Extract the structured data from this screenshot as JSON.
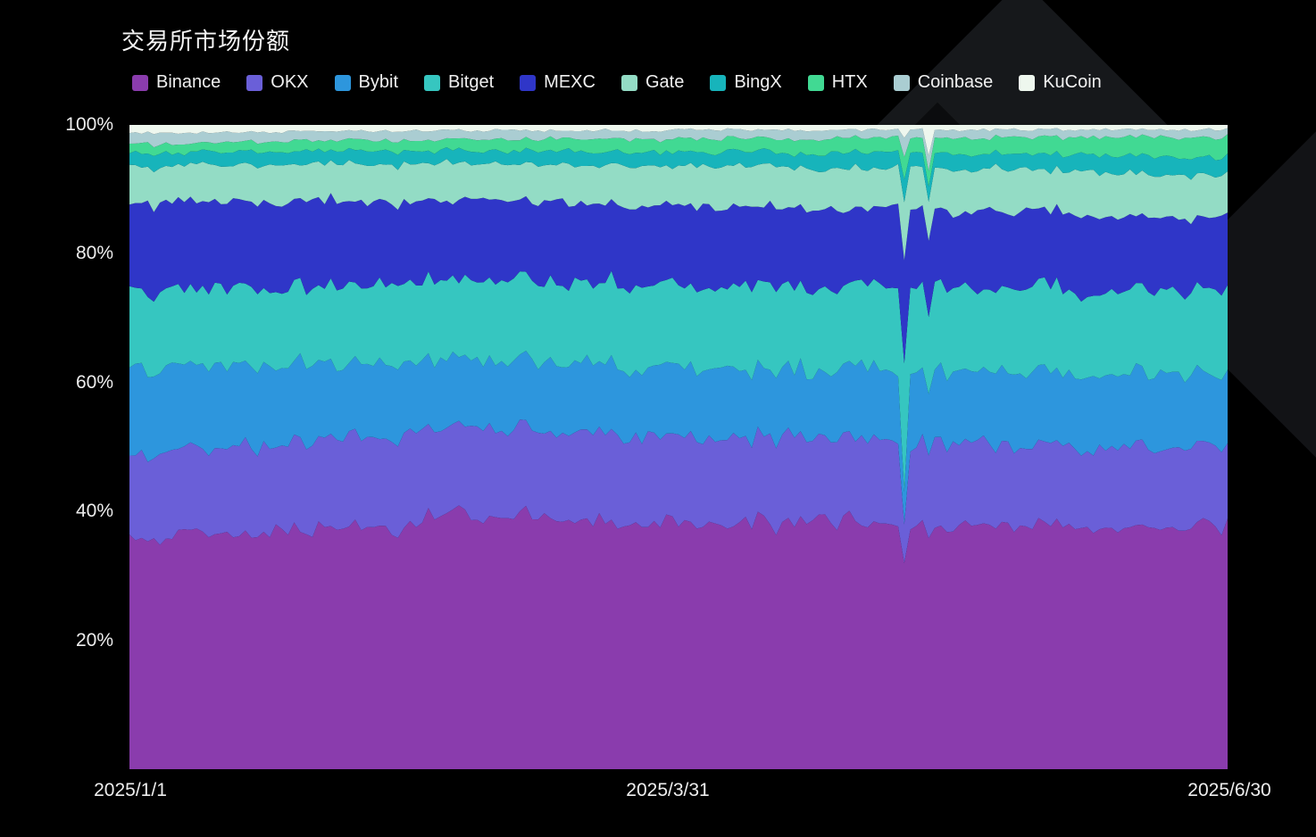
{
  "title": "交易所市场份额",
  "colors": {
    "background": "#000000",
    "text": "#ededed",
    "watermark": "#16181b"
  },
  "y_axis": {
    "labels": [
      "100%",
      "80%",
      "60%",
      "40%",
      "20%"
    ],
    "values": [
      100,
      80,
      60,
      40,
      20
    ]
  },
  "x_axis": {
    "labels": [
      "2025/1/1",
      "2025/3/31",
      "2025/6/30"
    ]
  },
  "chart_data": {
    "type": "area",
    "stacked": true,
    "normalized_percent": true,
    "title": "交易所市场份额",
    "xlabel": "",
    "ylabel": "",
    "ylim": [
      0,
      100
    ],
    "grid": false,
    "legend_position": "top",
    "x_range": [
      "2025/1/1",
      "2025/6/30"
    ],
    "x_tick_labels": [
      "2025/1/1",
      "2025/3/31",
      "2025/6/30"
    ],
    "y_tick_labels": [
      "20%",
      "40%",
      "60%",
      "80%",
      "100%"
    ],
    "sample_step_days": 6,
    "series_note": "approximate market-share percent, sampled every 6 days from 2025/1/1 to 2025/6/30, stacked bottom-to-top",
    "series": [
      {
        "name": "Binance",
        "color": "#8a3cad",
        "jitter": 1.4,
        "values": [
          36.2,
          35.5,
          37.0,
          36.0,
          37.5,
          36.5,
          38.0,
          37.2,
          38.5,
          40.5,
          38.8,
          39.2,
          37.6,
          38.2,
          37.0,
          38.0,
          37.6,
          36.8,
          38.2,
          37.2,
          38.5,
          37.0,
          36.2,
          37.6,
          36.6,
          37.4,
          36.2,
          37.0,
          36.6,
          37.4,
          37.2
        ]
      },
      {
        "name": "OKX",
        "color": "#6a5fd8",
        "jitter": 1.1,
        "values": [
          13.0,
          12.8,
          13.2,
          13.5,
          13.0,
          14.0,
          14.4,
          13.8,
          13.5,
          14.0,
          13.5,
          13.0,
          13.5,
          13.8,
          13.2,
          13.5,
          13.0,
          12.8,
          13.2,
          12.8,
          13.0,
          12.6,
          12.8,
          12.5,
          12.2,
          12.5,
          12.0,
          12.3,
          12.5,
          12.2,
          12.3
        ]
      },
      {
        "name": "Bybit",
        "color": "#2d96dd",
        "jitter": 1.0,
        "values": [
          13.5,
          13.0,
          12.6,
          12.8,
          12.0,
          11.5,
          11.0,
          11.5,
          10.8,
          10.5,
          11.0,
          10.6,
          10.8,
          10.5,
          10.2,
          10.5,
          10.8,
          10.5,
          10.2,
          10.5,
          10.8,
          11.0,
          10.8,
          11.0,
          11.2,
          11.0,
          11.3,
          11.0,
          11.2,
          11.3,
          11.2
        ]
      },
      {
        "name": "Bitget",
        "color": "#36c6c0",
        "jitter": 0.9,
        "values": [
          11.8,
          12.0,
          11.6,
          12.0,
          12.2,
          11.8,
          12.0,
          12.5,
          12.2,
          12.0,
          12.4,
          12.2,
          12.5,
          12.3,
          12.6,
          12.4,
          12.2,
          12.5,
          12.8,
          12.5,
          12.3,
          12.6,
          12.8,
          12.5,
          12.7,
          12.9,
          12.6,
          12.8,
          13.0,
          12.8,
          12.9
        ]
      },
      {
        "name": "MEXC",
        "color": "#2f36c8",
        "jitter": 1.2,
        "values": [
          13.8,
          13.5,
          13.0,
          13.5,
          12.8,
          13.2,
          12.6,
          12.8,
          12.2,
          12.5,
          12.8,
          12.0,
          12.5,
          12.2,
          11.8,
          12.2,
          12.5,
          12.0,
          11.8,
          12.2,
          11.8,
          12.0,
          11.6,
          11.8,
          12.0,
          11.5,
          11.8,
          11.5,
          11.2,
          11.5,
          11.5
        ]
      },
      {
        "name": "Gate",
        "color": "#93dcc5",
        "jitter": 0.7,
        "values": [
          5.5,
          5.3,
          5.6,
          5.4,
          5.7,
          5.5,
          5.8,
          5.6,
          5.9,
          5.7,
          6.0,
          5.8,
          6.0,
          5.9,
          6.1,
          6.0,
          6.2,
          6.0,
          6.3,
          6.1,
          6.3,
          6.2,
          6.4,
          6.3,
          6.5,
          6.4,
          6.5,
          6.4,
          6.6,
          6.5,
          6.5
        ]
      },
      {
        "name": "BingX",
        "color": "#17b4bb",
        "jitter": 0.35,
        "values": [
          2.0,
          2.1,
          1.9,
          2.0,
          2.1,
          2.0,
          2.0,
          2.1,
          2.0,
          2.1,
          2.0,
          2.1,
          2.2,
          2.1,
          2.2,
          2.1,
          2.2,
          2.3,
          2.2,
          2.3,
          2.4,
          2.3,
          2.4,
          2.5,
          2.4,
          2.5,
          2.6,
          2.6,
          2.7,
          2.8,
          2.8
        ]
      },
      {
        "name": "HTX",
        "color": "#41d993",
        "jitter": 0.3,
        "values": [
          1.4,
          1.5,
          1.4,
          1.5,
          1.6,
          1.5,
          1.6,
          1.7,
          1.6,
          1.7,
          1.8,
          1.8,
          1.9,
          2.0,
          1.9,
          2.0,
          2.1,
          2.0,
          2.1,
          2.2,
          2.3,
          2.2,
          2.4,
          2.5,
          2.4,
          2.6,
          2.7,
          2.8,
          2.9,
          3.0,
          3.0
        ]
      },
      {
        "name": "Coinbase",
        "color": "#aacdd2",
        "jitter": 0.3,
        "values": [
          1.6,
          1.7,
          1.6,
          1.5,
          1.6,
          1.5,
          1.5,
          1.4,
          1.5,
          1.4,
          1.5,
          1.4,
          1.3,
          1.4,
          1.3,
          1.4,
          1.3,
          1.3,
          1.4,
          1.3,
          1.2,
          1.3,
          1.2,
          1.3,
          1.2,
          1.2,
          1.3,
          1.2,
          1.2,
          1.2,
          1.2
        ]
      },
      {
        "name": "KuCoin",
        "color": "#eef7ee",
        "jitter": 0.25,
        "values": [
          1.2,
          1.1,
          1.2,
          1.0,
          1.1,
          1.0,
          0.9,
          1.0,
          0.9,
          0.9,
          0.8,
          0.9,
          0.8,
          0.8,
          0.9,
          0.8,
          0.8,
          0.7,
          0.8,
          0.7,
          0.8,
          0.7,
          0.7,
          0.8,
          0.7,
          0.7,
          0.7,
          0.7,
          0.7,
          0.7,
          0.7
        ]
      }
    ],
    "anomalies": [
      {
        "day_index": 127,
        "overrides": {
          "Binance": 32,
          "OKX": 6,
          "Bybit": 5,
          "Bitget": 20,
          "MEXC": 16,
          "Gate": 9,
          "BingX": 3.5,
          "HTX": 3.5,
          "Coinbase": 3,
          "KuCoin": 2
        }
      },
      {
        "day_index": 131,
        "overrides": {
          "KuCoin": 5,
          "Coinbase": 2.5
        }
      }
    ],
    "render": {
      "points": 181,
      "seed": 13
    }
  }
}
